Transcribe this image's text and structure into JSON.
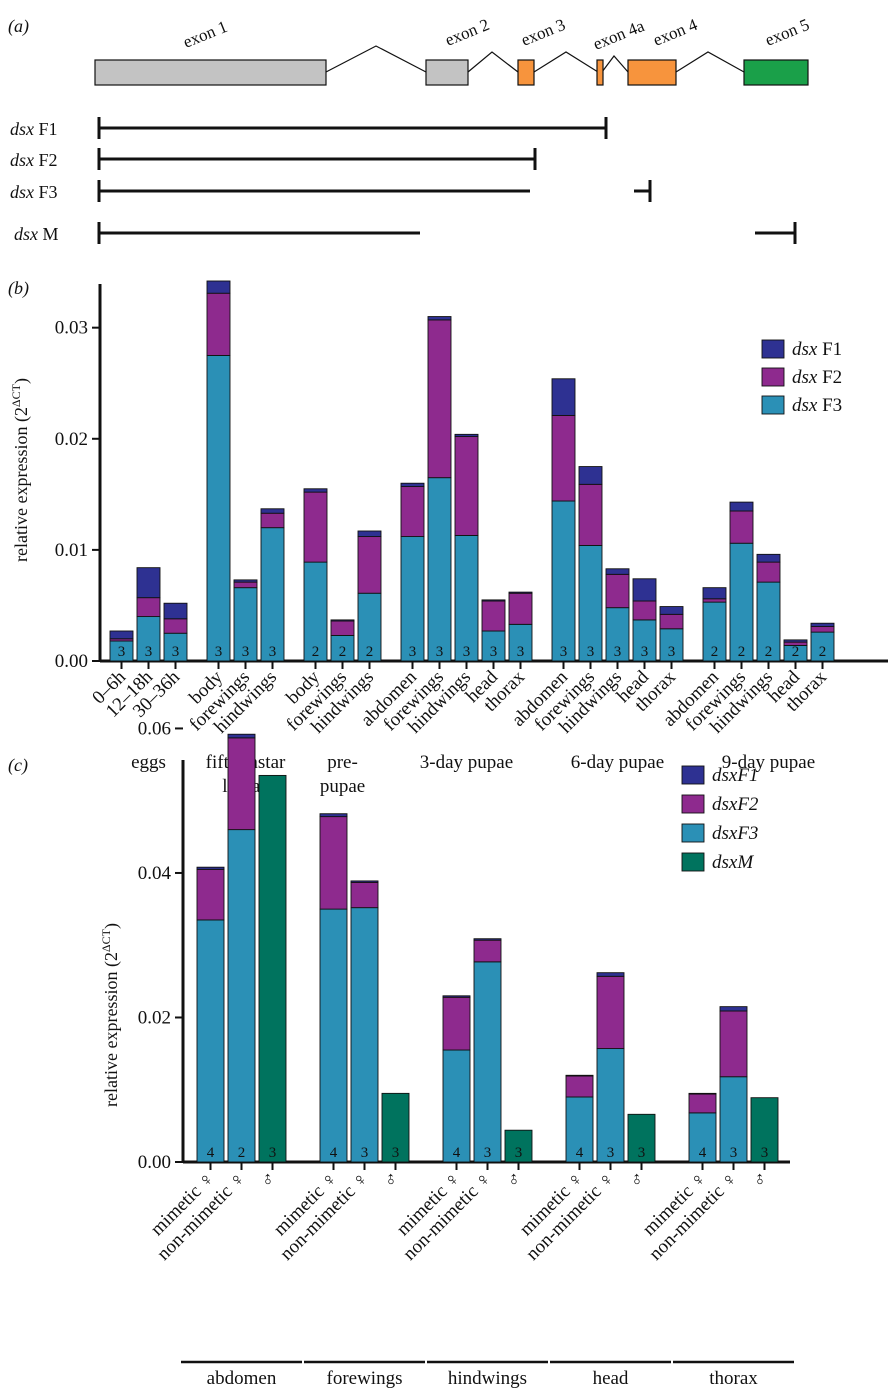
{
  "colors": {
    "dsxF1": "#2e3192",
    "dsxF2": "#8e2a8e",
    "dsxF3": "#2b90b6",
    "dsxM": "#00735e",
    "exon_grey": "#c3c3c3",
    "exon_orange": "#f7943d",
    "exon_green": "#1aa049"
  },
  "panel_a": {
    "label": "(a)",
    "exons": [
      {
        "name": "exon 1",
        "color": "exon_grey"
      },
      {
        "name": "exon 2",
        "color": "exon_grey"
      },
      {
        "name": "exon 3",
        "color": "exon_orange"
      },
      {
        "name": "exon 4a",
        "color": "exon_orange"
      },
      {
        "name": "exon 4",
        "color": "exon_orange"
      },
      {
        "name": "exon 5",
        "color": "exon_green"
      }
    ],
    "isoforms": [
      {
        "italic": "dsx",
        "suffix": " F1"
      },
      {
        "italic": "dsx",
        "suffix": " F2"
      },
      {
        "italic": "dsx",
        "suffix": " F3"
      },
      {
        "italic": "dsx",
        "suffix": " M"
      }
    ]
  },
  "chart_data": [
    {
      "panel": "(b)",
      "type": "bar",
      "stacked": true,
      "ylabel": "relative expression (2^ΔCT)",
      "ylabel_base": "relative expression (2",
      "ylabel_sup": "ΔCT",
      "ylabel_end": ")",
      "ylim": [
        0,
        0.036
      ],
      "yticks": [
        "0.00",
        "0.01",
        "0.02",
        "0.03"
      ],
      "legend": [
        {
          "italic": "dsx",
          "suffix": " F1",
          "color": "dsxF1"
        },
        {
          "italic": "dsx",
          "suffix": " F2",
          "color": "dsxF2"
        },
        {
          "italic": "dsx",
          "suffix": " F3",
          "color": "dsxF3"
        }
      ],
      "legend_position": "top-right",
      "groups": [
        {
          "label": "eggs",
          "bars": [
            {
              "x": "0–6h",
              "F3": 0.0018,
              "F2": 0.0002,
              "F1": 0.0007,
              "n": "3"
            },
            {
              "x": "12–18h",
              "F3": 0.004,
              "F2": 0.0017,
              "F1": 0.0027,
              "n": "3"
            },
            {
              "x": "30–36h",
              "F3": 0.0025,
              "F2": 0.0013,
              "F1": 0.0014,
              "n": "3"
            }
          ]
        },
        {
          "label": "fifth instar larvae",
          "bars": [
            {
              "x": "body",
              "F3": 0.0275,
              "F2": 0.0056,
              "F1": 0.0011,
              "n": "3"
            },
            {
              "x": "forewings",
              "F3": 0.0066,
              "F2": 0.0005,
              "F1": 0.0002,
              "n": "3"
            },
            {
              "x": "hindwings",
              "F3": 0.012,
              "F2": 0.0013,
              "F1": 0.0004,
              "n": "3"
            }
          ]
        },
        {
          "label": "pre-pupae",
          "bars": [
            {
              "x": "body",
              "F3": 0.0089,
              "F2": 0.0063,
              "F1": 0.0003,
              "n": "2"
            },
            {
              "x": "forewings",
              "F3": 0.0023,
              "F2": 0.0013,
              "F1": 0.0001,
              "n": "2"
            },
            {
              "x": "hindwings",
              "F3": 0.0061,
              "F2": 0.0051,
              "F1": 0.0005,
              "n": "2"
            }
          ]
        },
        {
          "label": "3-day pupae",
          "bars": [
            {
              "x": "abdomen",
              "F3": 0.0112,
              "F2": 0.0045,
              "F1": 0.0003,
              "n": "3"
            },
            {
              "x": "forewings",
              "F3": 0.0165,
              "F2": 0.0142,
              "F1": 0.0003,
              "n": "3"
            },
            {
              "x": "hindwings",
              "F3": 0.0113,
              "F2": 0.0089,
              "F1": 0.0002,
              "n": "3"
            },
            {
              "x": "head",
              "F3": 0.0027,
              "F2": 0.0027,
              "F1": 0.0001,
              "n": "3"
            },
            {
              "x": "thorax",
              "F3": 0.0033,
              "F2": 0.0028,
              "F1": 0.0001,
              "n": "3"
            }
          ]
        },
        {
          "label": "6-day pupae",
          "bars": [
            {
              "x": "abdomen",
              "F3": 0.0144,
              "F2": 0.0077,
              "F1": 0.0033,
              "n": "3"
            },
            {
              "x": "forewings",
              "F3": 0.0104,
              "F2": 0.0055,
              "F1": 0.0016,
              "n": "3"
            },
            {
              "x": "hindwings",
              "F3": 0.0048,
              "F2": 0.003,
              "F1": 0.0005,
              "n": "3"
            },
            {
              "x": "head",
              "F3": 0.0037,
              "F2": 0.0017,
              "F1": 0.002,
              "n": "3"
            },
            {
              "x": "thorax",
              "F3": 0.0029,
              "F2": 0.0013,
              "F1": 0.0007,
              "n": "3"
            }
          ]
        },
        {
          "label": "9-day pupae",
          "bars": [
            {
              "x": "abdomen",
              "F3": 0.0053,
              "F2": 0.0003,
              "F1": 0.001,
              "n": "2"
            },
            {
              "x": "forewings",
              "F3": 0.0106,
              "F2": 0.0029,
              "F1": 0.0008,
              "n": "2"
            },
            {
              "x": "hindwings",
              "F3": 0.0071,
              "F2": 0.0018,
              "F1": 0.0007,
              "n": "2"
            },
            {
              "x": "head",
              "F3": 0.0014,
              "F2": 0.0003,
              "F1": 0.0002,
              "n": "2"
            },
            {
              "x": "thorax",
              "F3": 0.0026,
              "F2": 0.0005,
              "F1": 0.0003,
              "n": "2"
            }
          ]
        }
      ]
    },
    {
      "panel": "(c)",
      "type": "bar",
      "stacked": true,
      "ylabel": "relative expression (2^ΔCT)",
      "ylabel_base": "relative expression (2",
      "ylabel_sup": "ΔCT",
      "ylabel_end": ")",
      "ylim": [
        0,
        0.062
      ],
      "yticks": [
        "0.00",
        "0.02",
        "0.04",
        "0.06"
      ],
      "legend": [
        {
          "italic": "dsxF1",
          "suffix": "",
          "color": "dsxF1"
        },
        {
          "italic": "dsxF2",
          "suffix": "",
          "color": "dsxF2"
        },
        {
          "italic": "dsxF3",
          "suffix": "",
          "color": "dsxF3"
        },
        {
          "italic": "dsxM",
          "suffix": "",
          "color": "dsxM"
        }
      ],
      "legend_position": "top-right",
      "groups": [
        {
          "label": "abdomen",
          "bars": [
            {
              "x": "mimetic ♀",
              "F3": 0.0335,
              "F2": 0.007,
              "F1": 0.0003,
              "M": 0,
              "n": "4"
            },
            {
              "x": "non-mimetic ♀",
              "F3": 0.046,
              "F2": 0.0127,
              "F1": 0.0005,
              "M": 0,
              "n": "2"
            },
            {
              "x": "♂",
              "F3": 0,
              "F2": 0,
              "F1": 0,
              "M": 0.0535,
              "n": "3"
            }
          ]
        },
        {
          "label": "forewings",
          "bars": [
            {
              "x": "mimetic ♀",
              "F3": 0.035,
              "F2": 0.0128,
              "F1": 0.0004,
              "M": 0,
              "n": "4"
            },
            {
              "x": "non-mimetic ♀",
              "F3": 0.0352,
              "F2": 0.0035,
              "F1": 0.0002,
              "M": 0,
              "n": "3"
            },
            {
              "x": "♂",
              "F3": 0,
              "F2": 0,
              "F1": 0,
              "M": 0.0095,
              "n": "3"
            }
          ]
        },
        {
          "label": "hindwings",
          "bars": [
            {
              "x": "mimetic ♀",
              "F3": 0.0155,
              "F2": 0.0073,
              "F1": 0.0002,
              "M": 0,
              "n": "4"
            },
            {
              "x": "non-mimetic ♀",
              "F3": 0.0277,
              "F2": 0.003,
              "F1": 0.0002,
              "M": 0,
              "n": "3"
            },
            {
              "x": "♂",
              "F3": 0,
              "F2": 0,
              "F1": 0,
              "M": 0.0044,
              "n": "3"
            }
          ]
        },
        {
          "label": "head",
          "bars": [
            {
              "x": "mimetic ♀",
              "F3": 0.009,
              "F2": 0.0029,
              "F1": 0.0001,
              "M": 0,
              "n": "4"
            },
            {
              "x": "non-mimetic ♀",
              "F3": 0.0157,
              "F2": 0.01,
              "F1": 0.0005,
              "M": 0,
              "n": "3"
            },
            {
              "x": "♂",
              "F3": 0,
              "F2": 0,
              "F1": 0,
              "M": 0.0066,
              "n": "3"
            }
          ]
        },
        {
          "label": "thorax",
          "bars": [
            {
              "x": "mimetic ♀",
              "F3": 0.0068,
              "F2": 0.0026,
              "F1": 0.0001,
              "M": 0,
              "n": "4"
            },
            {
              "x": "non-mimetic ♀",
              "F3": 0.0118,
              "F2": 0.0091,
              "F1": 0.0006,
              "M": 0,
              "n": "3"
            },
            {
              "x": "♂",
              "F3": 0,
              "F2": 0,
              "F1": 0,
              "M": 0.0089,
              "n": "3"
            }
          ]
        }
      ]
    }
  ]
}
